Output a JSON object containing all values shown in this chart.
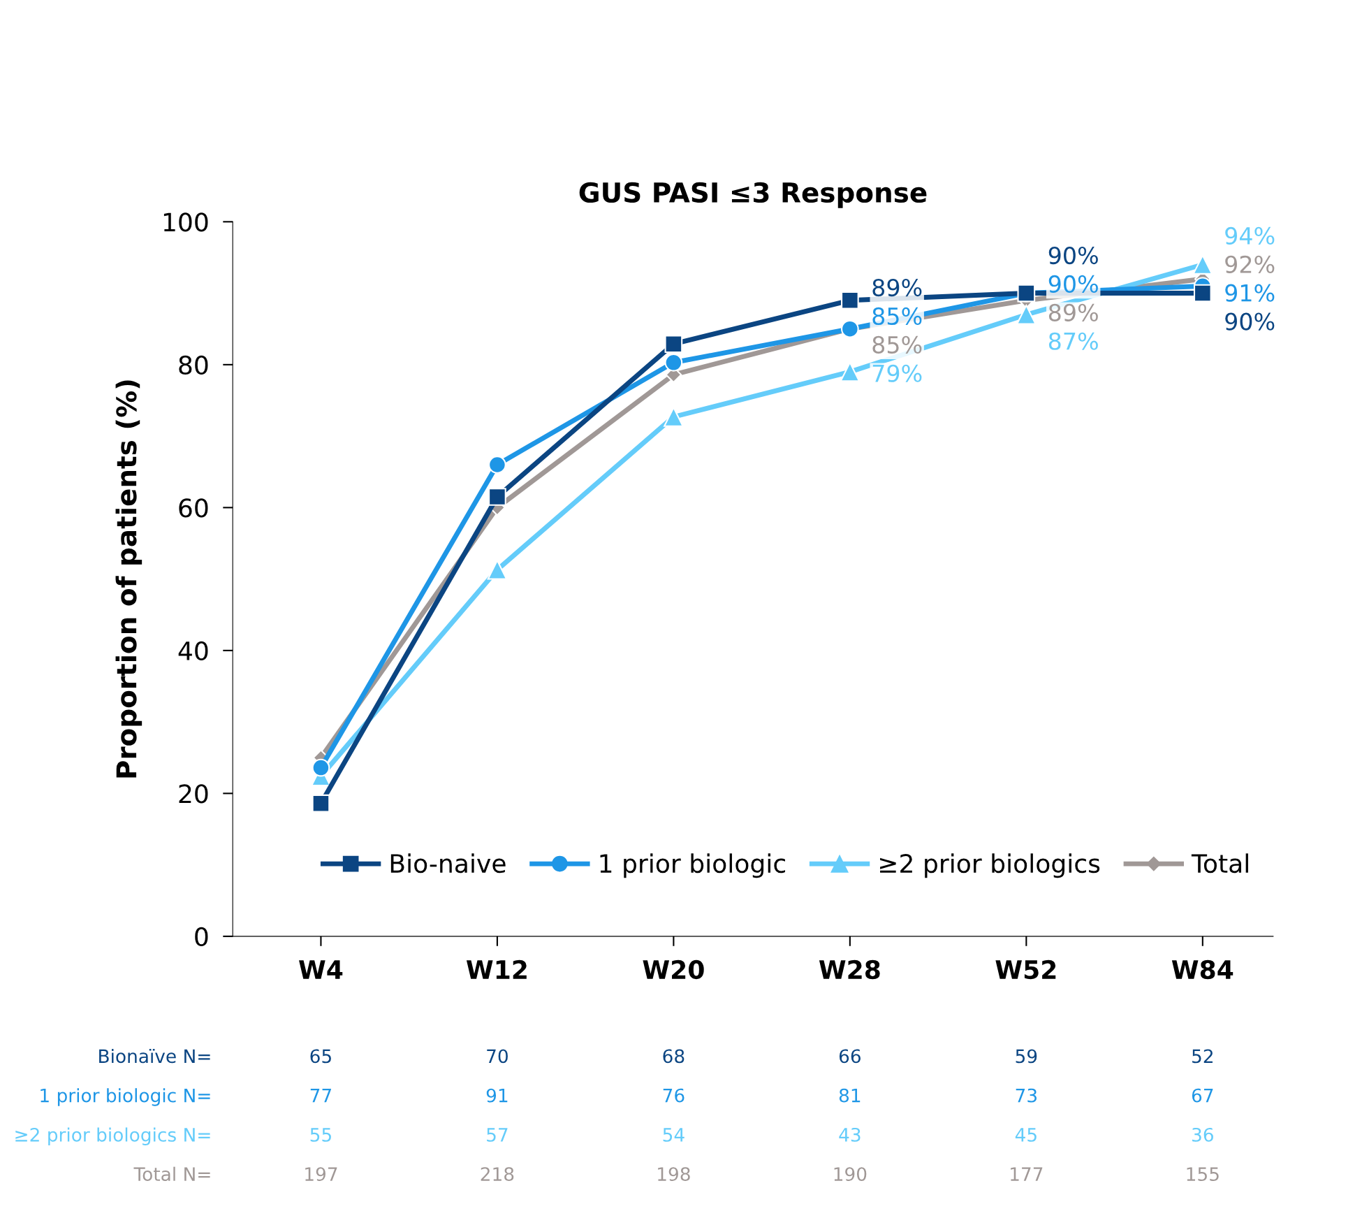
{
  "chart_data": {
    "type": "line",
    "title": "GUS PASI ≤3 Response",
    "ylabel": "Proportion of patients (%)",
    "categories": [
      "W4",
      "W12",
      "W20",
      "W28",
      "W52",
      "W84"
    ],
    "ylim": [
      0,
      100
    ],
    "yticks": [
      0,
      20,
      40,
      60,
      80,
      100
    ],
    "grid": false,
    "legend": "bottom right",
    "line_style": "solid",
    "series": [
      {
        "name": "Bio-naive",
        "color": "#0b4582",
        "marker": "square",
        "values": [
          18.6,
          61.5,
          82.9,
          89,
          90,
          90
        ],
        "value_labels": [
          null,
          null,
          null,
          "89%",
          "90%",
          "90%"
        ]
      },
      {
        "name": "1 prior biologic",
        "color": "#1e96e6",
        "marker": "circle",
        "values": [
          23.6,
          66,
          80.3,
          85,
          90,
          91
        ],
        "value_labels": [
          null,
          null,
          null,
          "85%",
          "90%",
          "91%"
        ]
      },
      {
        "name": "≥2 prior biologics",
        "color": "#64ccfa",
        "marker": "triangle",
        "values": [
          22.4,
          51.3,
          72.7,
          79,
          87,
          94
        ],
        "value_labels": [
          null,
          null,
          null,
          "79%",
          "87%",
          "94%"
        ]
      },
      {
        "name": "Total",
        "color": "#a09896",
        "marker": "diamond",
        "values": [
          25,
          60,
          78.6,
          85,
          89,
          92
        ],
        "value_labels": [
          null,
          null,
          null,
          "85%",
          "89%",
          "92%"
        ]
      }
    ],
    "annotations": [
      "Bionaïve N=",
      "65",
      "70",
      "68",
      "66",
      "59",
      "52",
      "1 prior biologic N=",
      "77",
      "91",
      "76",
      "81",
      "73",
      "67",
      "≥2 prior biologics N=",
      "55",
      "57",
      "54",
      "43",
      "45",
      "36",
      "Total N=",
      "197",
      "218",
      "198",
      "190",
      "177",
      "155"
    ]
  }
}
